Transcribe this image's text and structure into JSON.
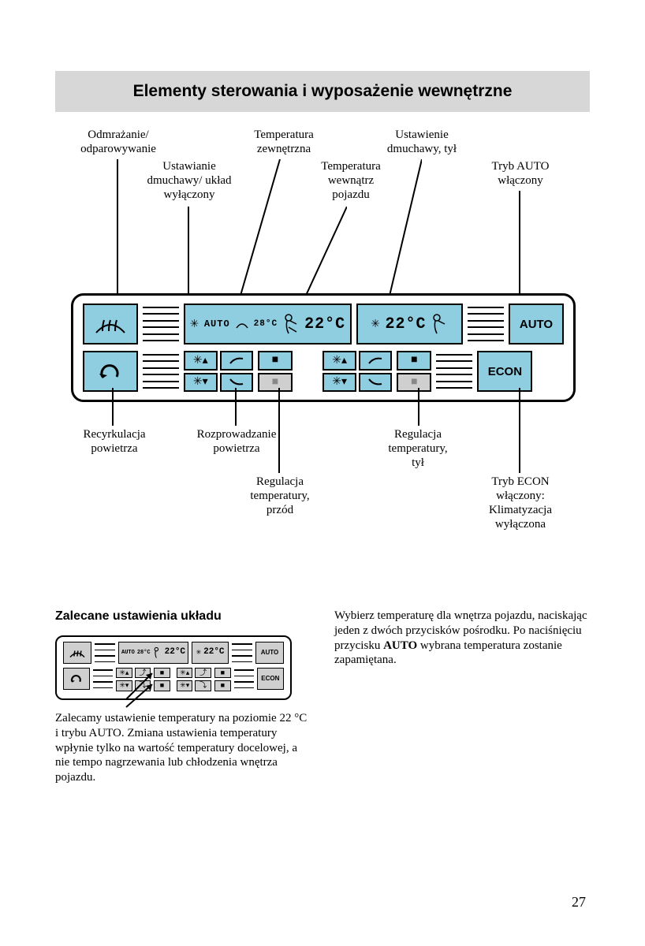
{
  "title": "Elementy sterowania i wyposażenie wewnętrzne",
  "callouts": {
    "defrost": "Odmrażanie/\nodparowywanie",
    "fan_off": "Ustawianie\ndmuchawy/ układ\nwyłączony",
    "ext_temp": "Temperatura\nzewnętrzna",
    "int_temp": "Temperatura\nwewnątrz\npojazdu",
    "fan_rear": "Ustawienie\ndmuchawy, tył",
    "auto_on": "Tryb AUTO\nwłączony",
    "recirc": "Recyrkulacja\npowietrza",
    "air_dist": "Rozprowadzanie\npowietrza",
    "temp_front": "Regulacja\ntemperatury,\nprzód",
    "temp_rear": "Regulacja\ntemperatury,\ntył",
    "econ": "Tryb ECON\nwłączony:\nKlimatyzacja\nwyłączona"
  },
  "panel": {
    "auto_label": "AUTO",
    "econ_label": "ECON",
    "lcd_auto_word": "AUTO",
    "ext_temp_value": "28°C",
    "int_temp_value": "22°C",
    "rear_temp_value": "22°C",
    "colors": {
      "button_bg": "#8fcde0",
      "grey_bg": "#cfcfcf",
      "panel_border": "#000000",
      "page_bg": "#ffffff",
      "title_bg": "#d7d7d7"
    }
  },
  "section": {
    "heading": "Zalecane ustawienia układu",
    "left_para": "Zalecamy ustawienie temperatury na poziomie 22 °C i trybu AUTO. Zmiana ustawienia temperatury wpłynie tylko na wartość temperatury docelowej, a nie tempo nagrzewania lub chłodzenia wnętrza pojazdu.",
    "right_para_1": "Wybierz temperaturę dla wnętrza pojazdu, naciskając jeden z dwóch przycisków pośrodku. Po naciśnięciu przycisku ",
    "right_bold": "AUTO",
    "right_para_2": " wybrana temperatura zostanie zapamiętana."
  },
  "page_number": "27"
}
